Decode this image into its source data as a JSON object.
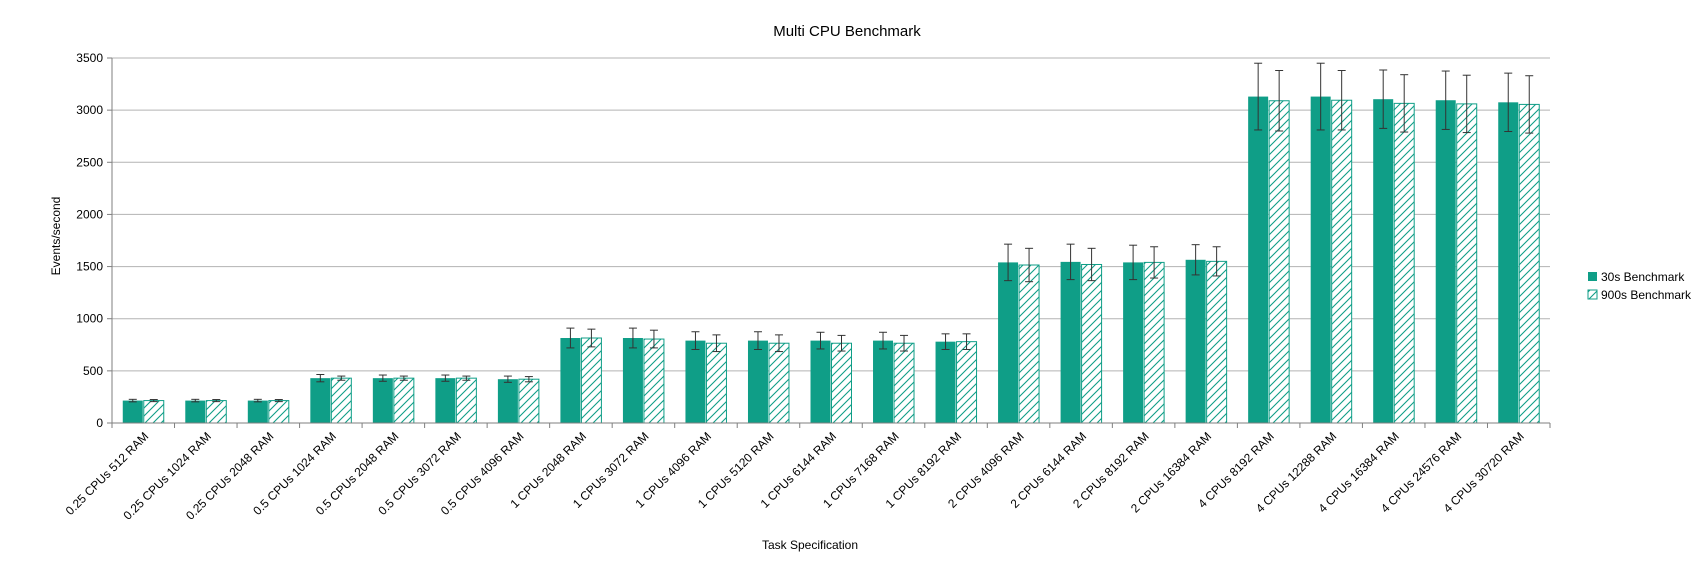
{
  "chart_data": {
    "type": "bar",
    "title": "Multi CPU Benchmark",
    "xlabel": "Task Specification",
    "ylabel": "Events/second",
    "ylim": [
      0,
      3500
    ],
    "yticks": [
      0,
      500,
      1000,
      1500,
      2000,
      2500,
      3000,
      3500
    ],
    "grid": true,
    "legend_position": "right",
    "categories": [
      "0.25 CPUs 512 RAM",
      "0.25 CPUs 1024 RAM",
      "0.25 CPUs 2048 RAM",
      "0.5 CPUs 1024 RAM",
      "0.5 CPUs 2048 RAM",
      "0.5 CPUs 3072 RAM",
      "0.5 CPUs 4096 RAM",
      "1 CPUs 2048 RAM",
      "1 CPUs 3072 RAM",
      "1 CPUs 4096 RAM",
      "1 CPUs 5120 RAM",
      "1 CPUs 6144 RAM",
      "1 CPUs 7168 RAM",
      "1 CPUs 8192 RAM",
      "2 CPUs 4096 RAM",
      "2 CPUs 6144 RAM",
      "2 CPUs 8192 RAM",
      "2 CPUs 16384 RAM",
      "4 CPUs 8192 RAM",
      "4 CPUs 12288 RAM",
      "4 CPUs 16384 RAM",
      "4 CPUs 24576 RAM",
      "4 CPUs 30720 RAM"
    ],
    "series": [
      {
        "name": "30s Benchmark",
        "style": "solid",
        "color": "#0f9e87",
        "values": [
          215,
          215,
          215,
          430,
          430,
          430,
          420,
          815,
          815,
          790,
          790,
          790,
          790,
          780,
          1540,
          1545,
          1540,
          1565,
          3130,
          3130,
          3105,
          3095,
          3075
        ],
        "errors": [
          12,
          12,
          12,
          35,
          30,
          30,
          30,
          95,
          95,
          85,
          85,
          80,
          80,
          75,
          175,
          170,
          165,
          145,
          320,
          320,
          280,
          280,
          280
        ]
      },
      {
        "name": "900s Benchmark",
        "style": "hatched",
        "color": "#0f9e87",
        "values": [
          215,
          215,
          215,
          430,
          430,
          430,
          420,
          815,
          805,
          765,
          765,
          765,
          765,
          780,
          1515,
          1520,
          1540,
          1550,
          3090,
          3095,
          3065,
          3060,
          3055
        ],
        "errors": [
          10,
          10,
          10,
          20,
          20,
          20,
          25,
          85,
          85,
          80,
          80,
          75,
          75,
          75,
          160,
          155,
          150,
          140,
          290,
          285,
          275,
          275,
          275
        ]
      }
    ]
  }
}
